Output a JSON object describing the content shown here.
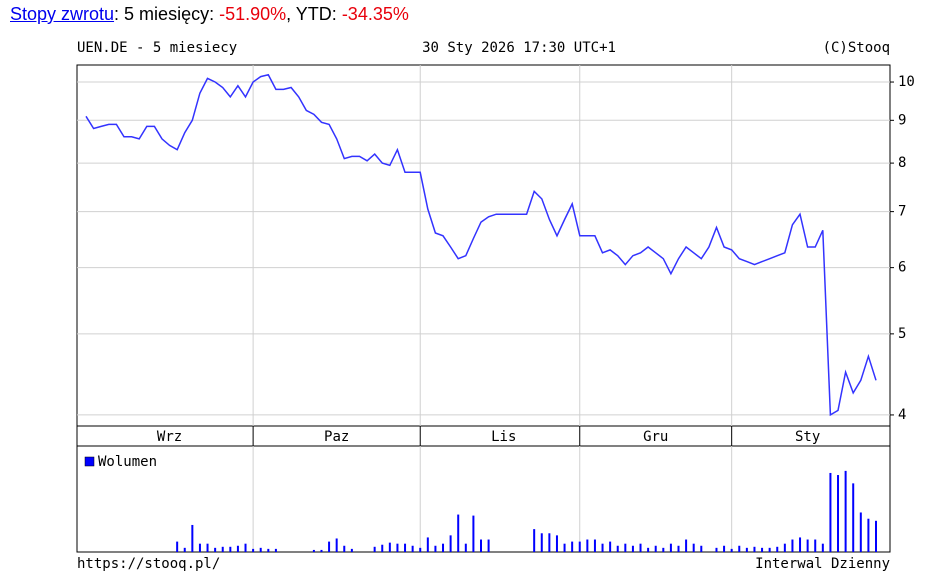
{
  "header": {
    "link": "Stopy zwrotu",
    "text1": ": 5 miesięcy: ",
    "return_5m": "-51.90%",
    "text2": ", YTD: ",
    "return_ytd": "-34.35%"
  },
  "footer": {
    "left": "https://stooq.pl/",
    "right": "Interwal Dzienny"
  },
  "chart_data": [
    {
      "type": "line",
      "title": "UEN.DE - 5 miesiecy",
      "subtitle": "30 Sty 2026 17:30 UTC+1",
      "source": "(C)Stooq",
      "log_scale": true,
      "grid": true,
      "color": "#3333ff",
      "categories": [
        null,
        null,
        null,
        null,
        null,
        null,
        null,
        null,
        null,
        null,
        null,
        "Wrz",
        null,
        null,
        null,
        null,
        null,
        null,
        null,
        null,
        null,
        null,
        null,
        null,
        null,
        null,
        null,
        null,
        null,
        null,
        null,
        null,
        null,
        "Paz",
        null,
        null,
        null,
        null,
        null,
        null,
        null,
        null,
        null,
        null,
        null,
        null,
        null,
        null,
        null,
        null,
        null,
        null,
        null,
        null,
        null,
        "Lis",
        null,
        null,
        null,
        null,
        null,
        null,
        null,
        null,
        null,
        null,
        null,
        null,
        null,
        null,
        null,
        null,
        null,
        null,
        null,
        "Gru",
        null,
        null,
        null,
        null,
        null,
        null,
        null,
        null,
        null,
        null,
        null,
        null,
        null,
        null,
        null,
        null,
        null,
        null,
        null,
        "Sty",
        null,
        null,
        null,
        null,
        null,
        null,
        null,
        null,
        null
      ],
      "values": [
        9.1,
        8.8,
        8.85,
        8.9,
        8.9,
        8.6,
        8.6,
        8.55,
        8.85,
        8.85,
        8.55,
        8.4,
        8.3,
        8.7,
        9.0,
        9.7,
        10.1,
        10.0,
        9.85,
        9.6,
        9.9,
        9.6,
        10.0,
        10.15,
        10.2,
        9.8,
        9.8,
        9.85,
        9.6,
        9.25,
        9.15,
        8.95,
        8.9,
        8.55,
        8.1,
        8.15,
        8.15,
        8.05,
        8.2,
        8.0,
        7.95,
        8.3,
        7.8,
        7.8,
        7.8,
        7.05,
        6.6,
        6.55,
        6.35,
        6.15,
        6.2,
        6.5,
        6.8,
        6.9,
        6.95,
        6.95,
        6.95,
        6.95,
        6.95,
        7.4,
        7.25,
        6.85,
        6.55,
        6.85,
        7.15,
        6.55,
        6.55,
        6.55,
        6.25,
        6.3,
        6.2,
        6.05,
        6.2,
        6.25,
        6.35,
        6.25,
        6.15,
        5.9,
        6.15,
        6.35,
        6.25,
        6.15,
        6.35,
        6.7,
        6.35,
        6.3,
        6.15,
        6.1,
        6.05,
        6.1,
        6.15,
        6.2,
        6.25,
        6.75,
        6.95,
        6.35,
        6.35,
        6.65,
        4.0,
        4.05,
        4.5,
        4.25,
        4.4,
        4.7,
        4.4
      ],
      "ylim": [
        3.88,
        10.48
      ],
      "yticks": [
        4,
        5,
        6,
        7,
        8,
        9,
        10
      ]
    },
    {
      "type": "bar",
      "legend": "Wolumen",
      "color": "#0000ff",
      "ylim": [
        0,
        100
      ],
      "values": [
        0,
        0,
        0,
        0,
        0,
        0,
        0,
        0,
        0,
        0,
        0,
        0,
        10,
        4,
        26,
        8,
        8,
        4,
        5,
        5,
        6,
        8,
        3,
        4,
        3,
        3,
        0,
        0,
        0,
        0,
        2,
        2,
        10,
        13,
        6,
        3,
        0,
        0,
        5,
        7,
        9,
        8,
        8,
        6,
        4,
        14,
        6,
        8,
        16,
        36,
        8,
        35,
        12,
        12,
        0,
        0,
        0,
        0,
        0,
        22,
        18,
        18,
        16,
        8,
        10,
        10,
        12,
        12,
        8,
        10,
        6,
        8,
        6,
        8,
        4,
        6,
        4,
        8,
        6,
        12,
        8,
        6,
        0,
        4,
        6,
        3,
        6,
        4,
        5,
        4,
        4,
        5,
        8,
        12,
        14,
        12,
        12,
        8,
        76,
        74,
        78,
        66,
        38,
        32,
        30
      ]
    }
  ]
}
